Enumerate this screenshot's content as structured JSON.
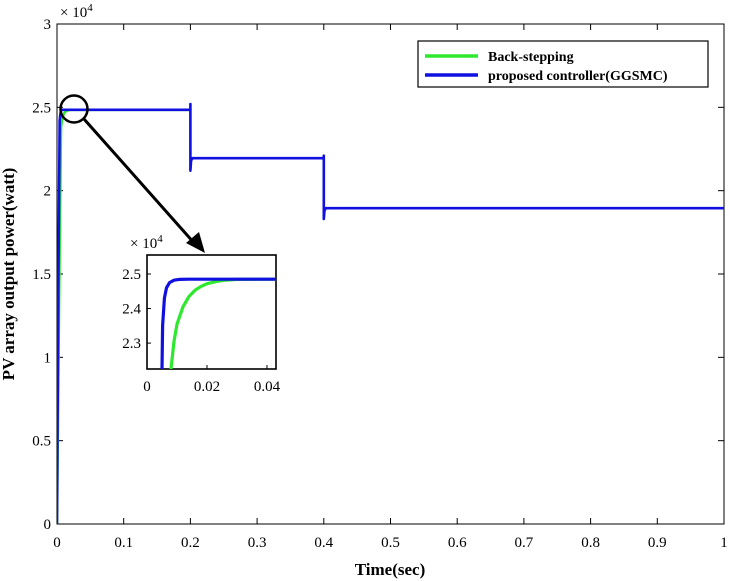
{
  "chart_data": [
    {
      "type": "line",
      "xlabel": "Time(sec)",
      "ylabel": "PV array output power(watt)",
      "xlim": [
        0,
        1
      ],
      "ylim": [
        0,
        30000
      ],
      "x_ticks": [
        "0",
        "0.1",
        "0.2",
        "0.3",
        "0.4",
        "0.5",
        "0.6",
        "0.7",
        "0.8",
        "0.9",
        "1"
      ],
      "x_tick_values": [
        0,
        0.1,
        0.2,
        0.3,
        0.4,
        0.5,
        0.6,
        0.7,
        0.8,
        0.9,
        1
      ],
      "y_ticks": [
        "0",
        "0.5",
        "1",
        "1.5",
        "2",
        "2.5",
        "3"
      ],
      "y_tick_values": [
        0,
        5000,
        10000,
        15000,
        20000,
        25000,
        30000
      ],
      "y_exponent": {
        "base": "× 10",
        "power": "4"
      },
      "grid": false,
      "legend_position": "top-right",
      "series": [
        {
          "name": "Back-stepping",
          "color": "#2ee82e",
          "x": [
            0,
            0.003,
            0.006,
            0.008,
            0.01,
            0.012,
            0.015,
            0.02,
            0.2
          ],
          "y": [
            0,
            13000,
            23800,
            24350,
            24600,
            24720,
            24800,
            24850,
            24850
          ]
        },
        {
          "name": "proposed controller(GGSMC)",
          "color": "#1010e0",
          "x": [
            0,
            0.002,
            0.004,
            0.005,
            0.006,
            0.008,
            0.01,
            0.2,
            0.2,
            0.2,
            0.201,
            0.203,
            0.4,
            0.4,
            0.4,
            0.401,
            0.403,
            1.0
          ],
          "y": [
            0,
            14000,
            24200,
            24600,
            24800,
            24850,
            24850,
            24850,
            25200,
            21200,
            21800,
            21950,
            21950,
            22100,
            18300,
            18800,
            18950,
            18950
          ]
        }
      ],
      "annotations": [
        {
          "type": "circle",
          "x": 0.0045,
          "y": 24850
        },
        {
          "type": "arrow",
          "from": [
            0.0045,
            24850
          ],
          "to": [
            0.22,
            16500
          ]
        }
      ]
    },
    {
      "type": "line",
      "role": "inset-zoom",
      "xlim": [
        0,
        0.043
      ],
      "ylim": [
        22250,
        25550
      ],
      "x_ticks": [
        "0",
        "0.02",
        "0.04"
      ],
      "x_tick_values": [
        0,
        0.02,
        0.04
      ],
      "y_ticks": [
        "2.3",
        "2.4",
        "2.5"
      ],
      "y_tick_values": [
        23000,
        24000,
        25000
      ],
      "y_exponent": {
        "base": "× 10",
        "power": "4"
      },
      "series": [
        {
          "name": "Back-stepping",
          "color": "#2ee82e",
          "x": [
            0.008,
            0.009,
            0.01,
            0.012,
            0.014,
            0.016,
            0.018,
            0.02,
            0.023,
            0.026,
            0.03,
            0.043
          ],
          "y": [
            22250,
            23050,
            23550,
            24050,
            24350,
            24530,
            24640,
            24720,
            24780,
            24820,
            24845,
            24850
          ]
        },
        {
          "name": "proposed controller(GGSMC)",
          "color": "#1010e0",
          "x": [
            0.005,
            0.0052,
            0.0058,
            0.0065,
            0.0075,
            0.009,
            0.011,
            0.014,
            0.043
          ],
          "y": [
            22250,
            23500,
            24300,
            24600,
            24750,
            24820,
            24845,
            24850,
            24850
          ]
        }
      ]
    }
  ]
}
